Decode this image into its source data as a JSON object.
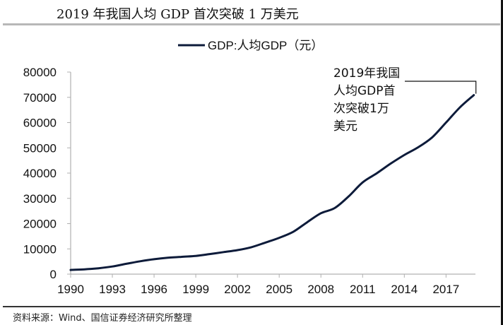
{
  "page": {
    "title": "2019 年我国人均 GDP 首次突破 1 万美元",
    "source": "资料来源：Wind、国信证券经济研究所整理"
  },
  "chart_data": {
    "type": "line",
    "title": "2019 年我国人均 GDP 首次突破 1 万美元",
    "xlabel": "",
    "ylabel": "",
    "ylim": [
      0,
      80000
    ],
    "xlim": [
      1990,
      2019
    ],
    "y_ticks": [
      "0",
      "10000",
      "20000",
      "30000",
      "40000",
      "50000",
      "60000",
      "70000",
      "80000"
    ],
    "x_ticks": [
      "1990",
      "1993",
      "1996",
      "1999",
      "2002",
      "2005",
      "2008",
      "2011",
      "2014",
      "2017"
    ],
    "grid": false,
    "legend": {
      "position": "top-center",
      "entries": [
        "GDP:人均GDP（元）"
      ]
    },
    "annotation": {
      "lines": [
        "2019年我国",
        "人均GDP首",
        "次突破1万",
        "美元"
      ],
      "target_x": 2019,
      "target_y": 70892
    },
    "series": [
      {
        "name": "GDP:人均GDP（元）",
        "color": "#0d1b3a",
        "x": [
          1990,
          1991,
          1992,
          1993,
          1994,
          1995,
          1996,
          1997,
          1998,
          1999,
          2000,
          2001,
          2002,
          2003,
          2004,
          2005,
          2006,
          2007,
          2008,
          2009,
          2010,
          2011,
          2012,
          2013,
          2014,
          2015,
          2016,
          2017,
          2018,
          2019
        ],
        "values": [
          1663,
          1912,
          2334,
          3027,
          4081,
          5091,
          5898,
          6481,
          6860,
          7229,
          7942,
          8717,
          9506,
          10666,
          12487,
          14368,
          16738,
          20494,
          24100,
          26180,
          30808,
          36302,
          39874,
          43684,
          47173,
          50237,
          54139,
          60014,
          66006,
          70892
        ]
      }
    ]
  }
}
